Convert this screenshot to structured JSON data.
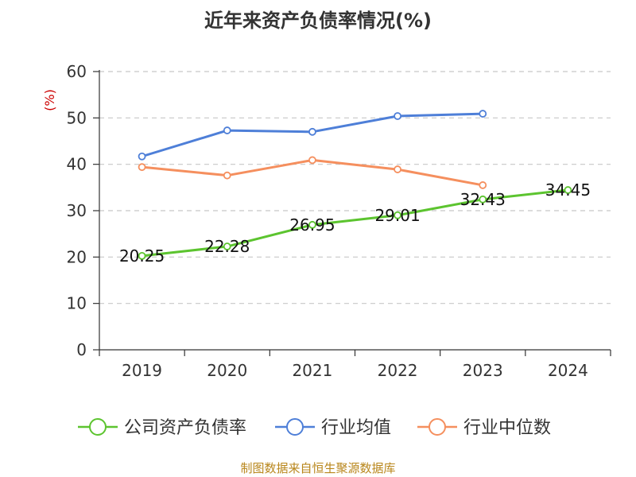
{
  "chart_data": {
    "type": "line",
    "title": "近年来资产负债率情况(%)",
    "ylabel": "(%)",
    "categories": [
      "2019",
      "2020",
      "2021",
      "2022",
      "2023",
      "2024"
    ],
    "ylim": [
      0,
      60
    ],
    "yticks": [
      0,
      10,
      20,
      30,
      40,
      50,
      60
    ],
    "grid": true,
    "legend_position": "bottom",
    "series": [
      {
        "name": "公司资产负债率",
        "color": "#5cc42f",
        "values": [
          20.25,
          22.28,
          26.95,
          29.01,
          32.43,
          34.45
        ],
        "labels": [
          "20.25",
          "22.28",
          "26.95",
          "29.01",
          "32.43",
          "34.45"
        ]
      },
      {
        "name": "行业均值",
        "color": "#4e7fd8",
        "values": [
          41.7,
          47.3,
          47.0,
          50.4,
          50.9,
          null
        ]
      },
      {
        "name": "行业中位数",
        "color": "#f58f5e",
        "values": [
          39.4,
          37.6,
          40.9,
          38.9,
          35.5,
          null
        ]
      }
    ]
  },
  "source": "制图数据来自恒生聚源数据库"
}
